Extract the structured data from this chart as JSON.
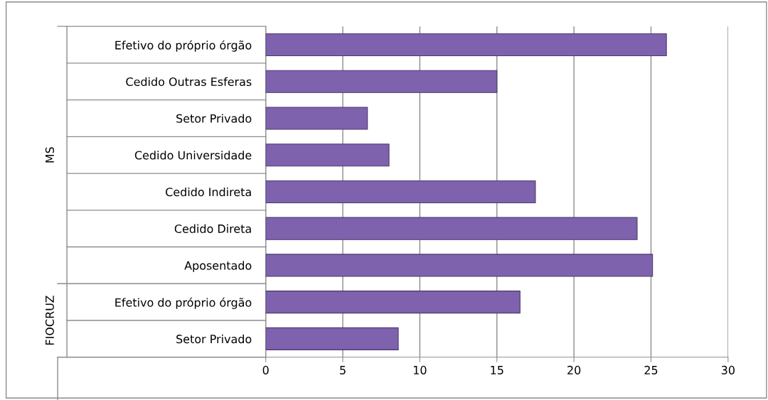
{
  "chart_data": {
    "type": "bar",
    "orientation": "horizontal",
    "categories": [
      "Efetivo do próprio órgão",
      "Cedido Outras Esferas",
      "Setor Privado",
      "Cedido Universidade",
      "Cedido Indireta",
      "Cedido Direta",
      "Aposentado",
      "Efetivo do próprio órgão",
      "Setor Privado"
    ],
    "values": [
      26.0,
      15.0,
      6.6,
      8.0,
      17.5,
      24.1,
      25.1,
      16.5,
      8.6
    ],
    "color": "#7e62ad",
    "xlim": [
      0,
      30
    ],
    "xticks": [
      0,
      5,
      10,
      15,
      20,
      25,
      30
    ],
    "grid": "x",
    "annotations": [
      "MS",
      "FIOCRUZ"
    ]
  }
}
